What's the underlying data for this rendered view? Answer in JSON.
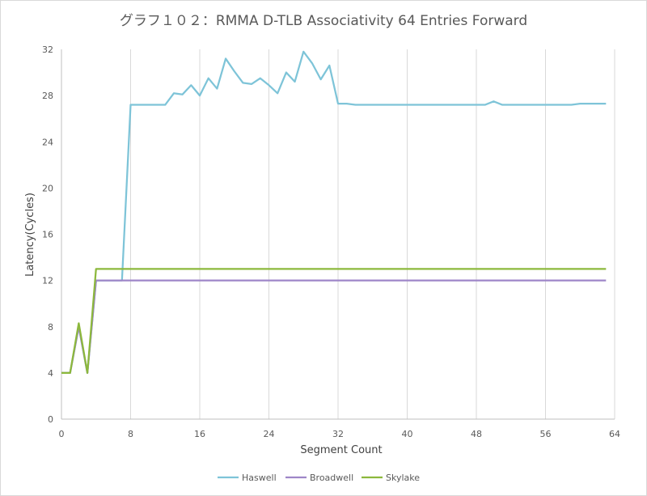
{
  "chart_data": {
    "type": "line",
    "title": "グラフ１０２：RMMA D-TLB Associativity 64 Entries Forward",
    "xlabel": "Segment Count",
    "ylabel": "Latency(Cycles)",
    "xlim": [
      0,
      64
    ],
    "ylim": [
      0,
      32
    ],
    "xticks": [
      0,
      8,
      16,
      24,
      32,
      40,
      48,
      56,
      64
    ],
    "yticks": [
      0,
      4,
      8,
      12,
      16,
      20,
      24,
      28,
      32
    ],
    "grid": "vertical",
    "legend_position": "bottom",
    "x": [
      0,
      1,
      2,
      3,
      4,
      5,
      6,
      7,
      8,
      9,
      10,
      11,
      12,
      13,
      14,
      15,
      16,
      17,
      18,
      19,
      20,
      21,
      22,
      23,
      24,
      25,
      26,
      27,
      28,
      29,
      30,
      31,
      32,
      33,
      34,
      35,
      36,
      37,
      38,
      39,
      40,
      41,
      42,
      43,
      44,
      45,
      46,
      47,
      48,
      49,
      50,
      51,
      52,
      53,
      54,
      55,
      56,
      57,
      58,
      59,
      60,
      61,
      62,
      63
    ],
    "series": [
      {
        "name": "Haswell",
        "color": "#7ec4d8",
        "values": [
          4,
          4,
          8,
          4,
          12,
          12,
          12,
          12,
          27.2,
          27.2,
          27.2,
          27.2,
          27.2,
          28.2,
          28.1,
          28.9,
          28.0,
          29.5,
          28.6,
          31.2,
          30.1,
          29.1,
          29.0,
          29.5,
          28.9,
          28.2,
          30.0,
          29.2,
          31.8,
          30.8,
          29.4,
          30.6,
          27.3,
          27.3,
          27.2,
          27.2,
          27.2,
          27.2,
          27.2,
          27.2,
          27.2,
          27.2,
          27.2,
          27.2,
          27.2,
          27.2,
          27.2,
          27.2,
          27.2,
          27.2,
          27.5,
          27.2,
          27.2,
          27.2,
          27.2,
          27.2,
          27.2,
          27.2,
          27.2,
          27.2,
          27.3,
          27.3,
          27.3,
          27.3
        ]
      },
      {
        "name": "Broadwell",
        "color": "#9e86c8",
        "values": [
          4,
          4,
          8,
          4,
          12,
          12,
          12,
          12,
          12,
          12,
          12,
          12,
          12,
          12,
          12,
          12,
          12,
          12,
          12,
          12,
          12,
          12,
          12,
          12,
          12,
          12,
          12,
          12,
          12,
          12,
          12,
          12,
          12,
          12,
          12,
          12,
          12,
          12,
          12,
          12,
          12,
          12,
          12,
          12,
          12,
          12,
          12,
          12,
          12,
          12,
          12,
          12,
          12,
          12,
          12,
          12,
          12,
          12,
          12,
          12,
          12,
          12,
          12,
          12
        ]
      },
      {
        "name": "Skylake",
        "color": "#8cb83c",
        "values": [
          4,
          4,
          8.3,
          4,
          13,
          13,
          13,
          13,
          13,
          13,
          13,
          13,
          13,
          13,
          13,
          13,
          13,
          13,
          13,
          13,
          13,
          13,
          13,
          13,
          13,
          13,
          13,
          13,
          13,
          13,
          13,
          13,
          13,
          13,
          13,
          13,
          13,
          13,
          13,
          13,
          13,
          13,
          13,
          13,
          13,
          13,
          13,
          13,
          13,
          13,
          13,
          13,
          13,
          13,
          13,
          13,
          13,
          13,
          13,
          13,
          13,
          13,
          13,
          13
        ]
      }
    ]
  }
}
